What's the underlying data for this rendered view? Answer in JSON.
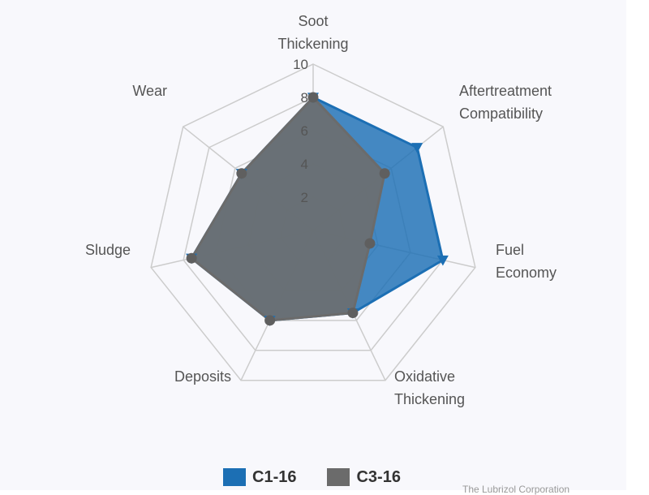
{
  "chart_data": {
    "type": "radar",
    "axes": [
      [
        "Soot",
        "Thickening"
      ],
      [
        "Aftertreatment",
        "Compatibility"
      ],
      [
        "Fuel",
        "Economy"
      ],
      [
        "Oxidative",
        "Thickening"
      ],
      [
        "Deposits"
      ],
      [
        "Sludge"
      ],
      [
        "Wear"
      ]
    ],
    "rlim": [
      0,
      10
    ],
    "ticks": [
      2,
      4,
      6,
      8,
      10
    ],
    "series": [
      {
        "name": "C1-16",
        "values": [
          8,
          8,
          8,
          5.5,
          6,
          7.5,
          5.5
        ],
        "color": "#1c6fb4",
        "marker": "triangle-down"
      },
      {
        "name": "C3-16",
        "values": [
          8,
          5.5,
          3.5,
          5.5,
          6,
          7.5,
          5.5
        ],
        "color": "#6b6b6b",
        "marker": "circle"
      }
    ],
    "legend_position": "bottom",
    "credit": "The Lubrizol Corporation"
  }
}
